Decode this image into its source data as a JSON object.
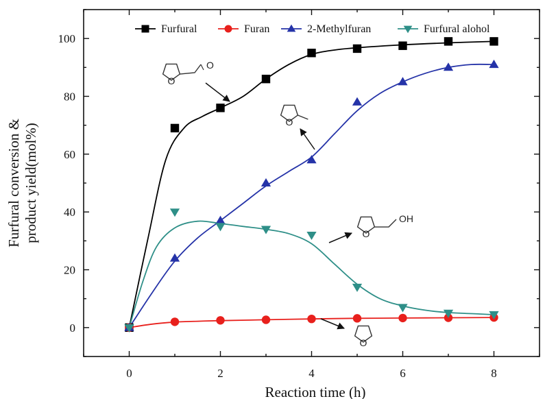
{
  "chart_data": {
    "type": "scatter",
    "xlabel": "Reaction time (h)",
    "ylabel_lines": [
      "Furfural conversion &",
      "product yield(mol%)"
    ],
    "xlim": [
      -1,
      9
    ],
    "ylim": [
      -10,
      110
    ],
    "xticks": [
      0,
      2,
      4,
      6,
      8
    ],
    "yticks": [
      0,
      20,
      40,
      60,
      80,
      100
    ],
    "grid": false,
    "legend_position": "top",
    "series": [
      {
        "name": "Furfural",
        "marker": "square",
        "color": "#000000",
        "x": [
          0,
          1,
          2,
          3,
          4,
          5,
          6,
          7,
          8
        ],
        "y": [
          0,
          69,
          76,
          86,
          95,
          96.5,
          97.5,
          99,
          99
        ],
        "fit": [
          [
            0,
            0
          ],
          [
            0.4,
            30
          ],
          [
            0.8,
            58
          ],
          [
            1.2,
            69
          ],
          [
            1.6,
            73
          ],
          [
            2,
            76
          ],
          [
            2.5,
            80
          ],
          [
            3,
            86
          ],
          [
            3.5,
            91
          ],
          [
            4,
            94.5
          ],
          [
            4.5,
            96
          ],
          [
            5,
            96.8
          ],
          [
            6,
            97.8
          ],
          [
            7,
            98.5
          ],
          [
            8,
            99
          ]
        ]
      },
      {
        "name": "Furan",
        "marker": "circle",
        "color": "#e8201c",
        "x": [
          0,
          1,
          2,
          3,
          4,
          5,
          6,
          7,
          8
        ],
        "y": [
          0,
          2,
          2.5,
          2.7,
          3,
          3.2,
          3.3,
          3.4,
          3.5
        ],
        "fit": [
          [
            0,
            0
          ],
          [
            0.5,
            1.2
          ],
          [
            1,
            1.9
          ],
          [
            1.5,
            2.2
          ],
          [
            2,
            2.4
          ],
          [
            3,
            2.7
          ],
          [
            4,
            3
          ],
          [
            5,
            3.2
          ],
          [
            6,
            3.3
          ],
          [
            7,
            3.4
          ],
          [
            8,
            3.5
          ]
        ]
      },
      {
        "name": "2-Methylfuran",
        "marker": "triangle-up",
        "color": "#2533a8",
        "x": [
          0,
          1,
          2,
          3,
          4,
          5,
          6,
          7,
          8
        ],
        "y": [
          0,
          24,
          37,
          50,
          58,
          78,
          85,
          90,
          91
        ],
        "fit": [
          [
            0,
            0
          ],
          [
            0.5,
            12
          ],
          [
            1,
            23
          ],
          [
            1.5,
            31
          ],
          [
            2,
            37
          ],
          [
            2.5,
            43
          ],
          [
            3,
            49
          ],
          [
            3.5,
            54
          ],
          [
            4,
            59
          ],
          [
            4.5,
            67
          ],
          [
            5,
            75
          ],
          [
            5.5,
            81
          ],
          [
            6,
            85
          ],
          [
            6.5,
            88
          ],
          [
            7,
            90
          ],
          [
            7.5,
            91
          ],
          [
            8,
            91
          ]
        ]
      },
      {
        "name": "Furfural alohol",
        "marker": "triangle-down",
        "color": "#2e8f88",
        "x": [
          0,
          1,
          2,
          3,
          4,
          5,
          6,
          7,
          8
        ],
        "y": [
          0,
          40,
          35,
          34,
          32,
          14,
          7,
          5,
          4.5
        ],
        "fit": [
          [
            0,
            0
          ],
          [
            0.3,
            16
          ],
          [
            0.6,
            28
          ],
          [
            1,
            34.5
          ],
          [
            1.5,
            36.8
          ],
          [
            2,
            36
          ],
          [
            2.5,
            35
          ],
          [
            3,
            34
          ],
          [
            3.5,
            32.5
          ],
          [
            4,
            29
          ],
          [
            4.5,
            22
          ],
          [
            5,
            15
          ],
          [
            5.5,
            10
          ],
          [
            6,
            7.5
          ],
          [
            6.5,
            6
          ],
          [
            7,
            5.2
          ],
          [
            8,
            4.5
          ]
        ]
      }
    ],
    "annotations": [
      {
        "molecule": "furfural",
        "label": "O",
        "points_to": [
          2,
          77
        ]
      },
      {
        "molecule": "2-methylfuran",
        "label": "O",
        "points_to": [
          4,
          58
        ]
      },
      {
        "molecule": "furfuryl-alcohol",
        "label": "OH",
        "points_to": [
          4,
          32
        ]
      },
      {
        "molecule": "furan",
        "label": "O",
        "points_to": [
          4,
          3
        ]
      }
    ]
  }
}
